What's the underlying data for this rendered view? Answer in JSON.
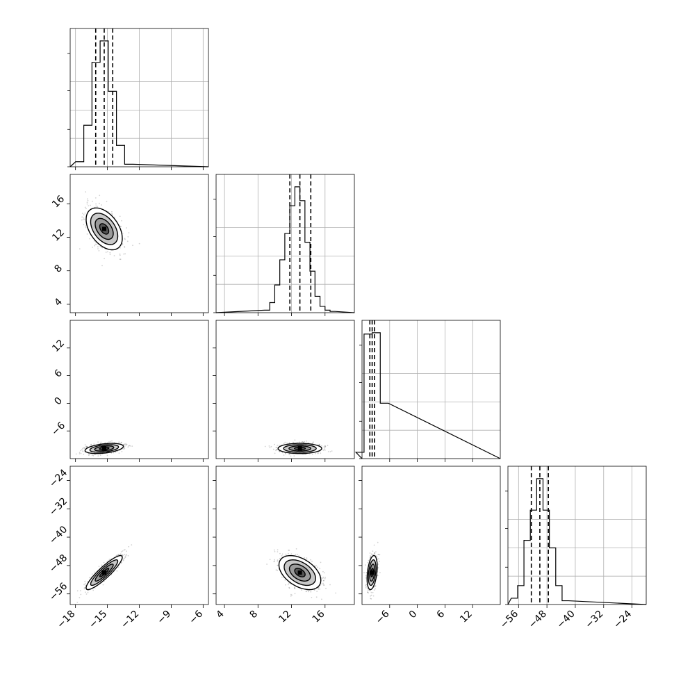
{
  "chart_data": {
    "type": "corner",
    "n_params": 4,
    "grid": true,
    "colors": {
      "frame": "#000000",
      "grid": "#b0b0b0",
      "line": "#000000",
      "fill": "#808080"
    },
    "params": [
      {
        "range": [
          -18.5,
          -5.5
        ],
        "xticks": [
          "−18",
          "−15",
          "−12",
          "−9",
          "−6"
        ],
        "xtick_values": [
          -18,
          -15,
          -12,
          -9,
          -6
        ],
        "quantiles": [
          -16.1,
          -15.3,
          -14.5
        ],
        "hist_counts": [
          0.04,
          0.33,
          0.83,
          1.0,
          0.6,
          0.17,
          0.02
        ]
      },
      {
        "range": [
          3,
          19.5
        ],
        "xticks": [
          "4",
          "8",
          "12",
          "16"
        ],
        "xtick_values": [
          4,
          8,
          12,
          16
        ],
        "yticks": [
          "16",
          "12",
          "8",
          "4"
        ],
        "ytick_values": [
          16,
          12,
          8,
          4
        ],
        "quantiles": [
          11.8,
          13.0,
          14.3
        ],
        "hist_counts": [
          0.02,
          0.08,
          0.22,
          0.42,
          0.63,
          0.85,
          1.0,
          0.89,
          0.56,
          0.33,
          0.13,
          0.05,
          0.02,
          0.01
        ]
      },
      {
        "range": [
          -12,
          18
        ],
        "xticks": [
          "−6",
          "0",
          "6",
          "12"
        ],
        "xtick_values": [
          -6,
          0,
          6,
          12
        ],
        "yticks": [
          "12",
          "6",
          "0",
          "−6"
        ],
        "ytick_values": [
          12,
          6,
          0,
          -6
        ],
        "quantiles": [
          -10.3,
          -9.8,
          -9.3
        ],
        "hist_counts": [
          0.05,
          0.99,
          1.0,
          0.44
        ]
      },
      {
        "range": [
          -59,
          -20
        ],
        "xticks": [
          "−56",
          "−48",
          "−40",
          "−32",
          "−24"
        ],
        "xtick_values": [
          -56,
          -48,
          -40,
          -32,
          -24
        ],
        "yticks": [
          "−24",
          "−32",
          "−40",
          "−48",
          "−56"
        ],
        "ytick_values": [
          -24,
          -32,
          -40,
          -48,
          -56
        ],
        "quantiles": [
          -52.4,
          -50.0,
          -47.6
        ],
        "hist_counts": [
          0.05,
          0.15,
          0.51,
          0.75,
          1.0,
          0.75,
          0.45,
          0.15,
          0.03
        ]
      }
    ],
    "pairs": [
      {
        "x_param": 0,
        "y_param": 1,
        "mean": [
          -15.3,
          13.0
        ],
        "sigma": [
          0.85,
          1.25
        ],
        "rho": -0.45
      },
      {
        "x_param": 0,
        "y_param": 2,
        "mean": [
          -15.3,
          -9.8
        ],
        "sigma": [
          0.9,
          0.55
        ],
        "rho": 0.4
      },
      {
        "x_param": 1,
        "y_param": 2,
        "mean": [
          13.0,
          -9.8
        ],
        "sigma": [
          1.3,
          0.55
        ],
        "rho": 0.0
      },
      {
        "x_param": 0,
        "y_param": 3,
        "mean": [
          -15.3,
          -50.0
        ],
        "sigma": [
          0.85,
          2.4
        ],
        "rho": 0.9
      },
      {
        "x_param": 1,
        "y_param": 3,
        "mean": [
          13.0,
          -50.0
        ],
        "sigma": [
          1.25,
          2.4
        ],
        "rho": -0.45
      },
      {
        "x_param": 2,
        "y_param": 3,
        "mean": [
          -9.8,
          -50.0
        ],
        "sigma": [
          0.55,
          2.4
        ],
        "rho": 0.35
      }
    ]
  }
}
